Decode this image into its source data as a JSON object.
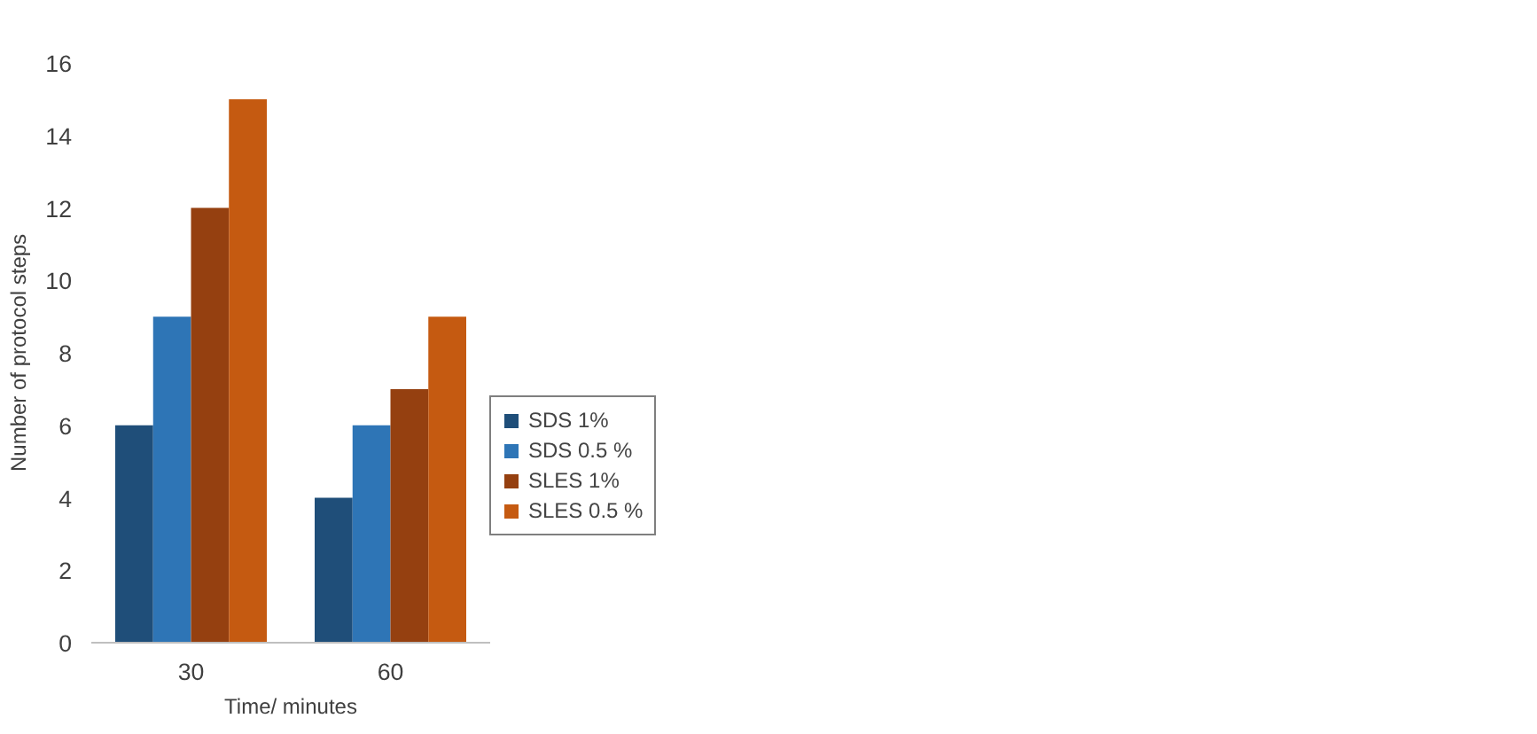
{
  "chart_data": {
    "type": "bar",
    "xlabel": "Time/ minutes",
    "ylabel": "Number of protocol steps",
    "categories": [
      "30",
      "60"
    ],
    "series": [
      {
        "name": "SDS 1%",
        "color": "#1f4e79",
        "values": [
          6,
          4
        ]
      },
      {
        "name": "SDS 0.5 %",
        "color": "#2e75b6",
        "values": [
          9,
          6
        ]
      },
      {
        "name": "SLES 1%",
        "color": "#954010",
        "values": [
          12,
          7
        ]
      },
      {
        "name": "SLES 0.5 %",
        "color": "#c55a11",
        "values": [
          15,
          9
        ]
      }
    ],
    "ylim": [
      0,
      16
    ],
    "yticks": [
      0,
      2,
      4,
      6,
      8,
      10,
      12,
      14,
      16
    ],
    "grid": false,
    "legend": "right"
  }
}
